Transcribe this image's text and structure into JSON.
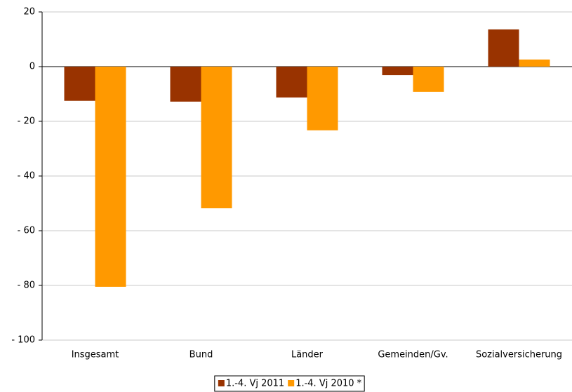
{
  "chart_data": {
    "type": "bar",
    "categories": [
      "Insgesamt",
      "Bund",
      "Länder",
      "Gemeinden/Gv.",
      "Sozialversicherung"
    ],
    "series": [
      {
        "name": "1.-4. Vj 2011",
        "color": "#993300",
        "values": [
          -12.5,
          -12.8,
          -11.3,
          -3.1,
          13.6
        ]
      },
      {
        "name": "1.-4. Vj 2010 *",
        "color": "#ff9900",
        "values": [
          -80.5,
          -51.8,
          -23.3,
          -9.2,
          2.6
        ]
      }
    ],
    "ylim": [
      -100,
      20
    ],
    "yticks": [
      {
        "value": -100,
        "label": "- 100"
      },
      {
        "value": -80,
        "label": "- 80"
      },
      {
        "value": -60,
        "label": "- 60"
      },
      {
        "value": -40,
        "label": "- 40"
      },
      {
        "value": -20,
        "label": "- 20"
      },
      0,
      20
    ],
    "grid": true,
    "legend": "bottom"
  }
}
